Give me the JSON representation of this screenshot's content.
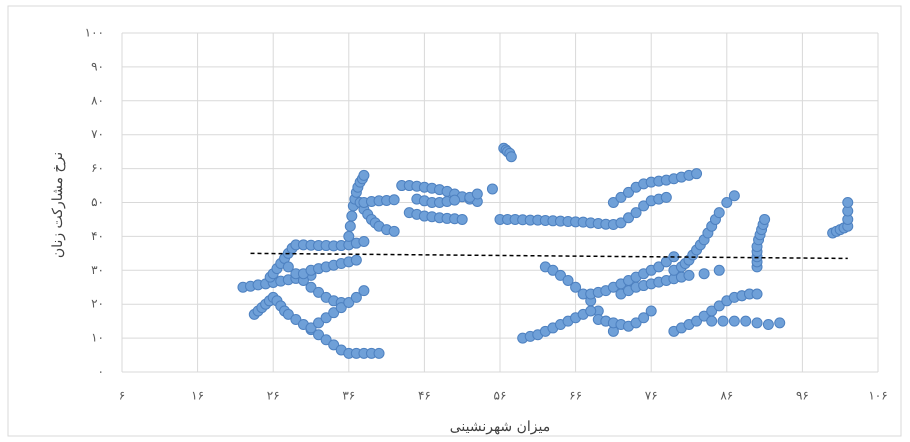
{
  "chart_data": {
    "type": "scatter",
    "x_label": "میزان شهرنشینی",
    "y_label": "نرخ مشارکت زنان",
    "color": "#6fa0d8",
    "edge_color": "#4e81c0",
    "grid": true,
    "xlim": [
      6,
      106
    ],
    "ylim": [
      0,
      100
    ],
    "xticks": [
      {
        "value": 6,
        "label": "۶"
      },
      {
        "value": 16,
        "label": "۱۶"
      },
      {
        "value": 26,
        "label": "۲۶"
      },
      {
        "value": 36,
        "label": "۳۶"
      },
      {
        "value": 46,
        "label": "۴۶"
      },
      {
        "value": 56,
        "label": "۵۶"
      },
      {
        "value": 66,
        "label": "۶۶"
      },
      {
        "value": 76,
        "label": "۷۶"
      },
      {
        "value": 86,
        "label": "۸۶"
      },
      {
        "value": 96,
        "label": "۹۶"
      },
      {
        "value": 106,
        "label": "۱۰۶"
      }
    ],
    "yticks": [
      {
        "value": 0,
        "label": "۰"
      },
      {
        "value": 10,
        "label": "۱۰"
      },
      {
        "value": 20,
        "label": "۲۰"
      },
      {
        "value": 30,
        "label": "۳۰"
      },
      {
        "value": 40,
        "label": "۴۰"
      },
      {
        "value": 50,
        "label": "۵۰"
      },
      {
        "value": 60,
        "label": "۶۰"
      },
      {
        "value": 70,
        "label": "۷۰"
      },
      {
        "value": 80,
        "label": "۸۰"
      },
      {
        "value": 90,
        "label": "۹۰"
      },
      {
        "value": 100,
        "label": "۱۰۰"
      }
    ],
    "x": [
      22,
      23,
      24,
      25,
      26,
      27,
      28,
      29,
      30,
      31,
      25.6,
      26,
      26.5,
      27,
      27.5,
      28,
      28.5,
      29,
      30,
      31,
      32,
      33,
      34,
      35,
      36,
      37,
      38,
      36,
      36.2,
      36.4,
      36.6,
      36.8,
      37,
      37.2,
      37.5,
      37.8,
      38,
      23.5,
      24,
      24.5,
      25,
      25.5,
      26,
      26.5,
      27,
      27.5,
      28,
      29,
      30,
      31,
      32,
      33,
      34,
      35,
      36,
      37,
      38,
      39,
      40,
      28,
      29,
      30,
      31,
      32,
      33,
      34,
      35,
      31,
      32,
      33,
      34,
      35,
      36,
      37,
      38,
      30,
      31,
      32,
      33,
      34,
      35,
      36,
      37,
      37.5,
      38,
      38.5,
      39,
      39.5,
      40,
      41,
      42,
      38,
      39,
      40,
      41,
      42,
      43,
      44,
      45,
      46,
      47,
      48,
      49,
      50,
      51,
      52,
      53,
      44,
      45,
      46,
      47,
      48,
      49,
      50,
      51,
      45,
      46,
      47,
      48,
      49,
      50,
      52,
      53,
      55,
      56.5,
      56.8,
      57,
      57.3,
      57.5,
      56,
      57,
      58,
      59,
      60,
      61,
      62,
      63,
      64,
      65,
      66,
      67,
      68,
      69,
      70,
      71,
      71,
      72,
      73,
      74,
      75,
      76,
      77,
      78,
      79,
      80,
      81,
      82,
      72,
      73,
      74,
      75,
      76,
      77,
      78,
      62,
      63,
      64,
      65,
      66,
      67,
      68,
      69,
      70,
      71,
      59,
      60,
      61,
      62,
      63,
      64,
      65,
      66,
      67,
      68,
      68,
      69,
      70,
      71,
      72,
      73,
      74,
      75,
      76,
      77,
      78,
      79,
      72,
      73,
      74,
      75,
      76,
      77,
      78,
      79,
      80,
      81,
      83,
      85,
      79,
      80,
      80.5,
      81,
      81.5,
      82,
      82.5,
      83,
      83.5,
      84,
      84.5,
      85,
      86,
      87,
      69,
      70,
      71,
      72,
      73,
      74,
      75,
      76,
      79,
      80,
      81,
      82,
      83,
      84,
      85,
      86,
      87,
      88,
      84,
      85.5,
      87,
      88.5,
      90,
      91.5,
      93,
      88,
      89,
      90,
      90,
      90,
      90,
      90,
      90,
      90.2,
      90.4,
      90.6,
      90.8,
      91,
      100,
      100.5,
      101,
      101.5,
      102,
      102,
      102,
      102
    ],
    "values": [
      25,
      25.3,
      25.7,
      26,
      26.4,
      26.8,
      27.2,
      27.6,
      28,
      28.5,
      28,
      29,
      30.5,
      32,
      33.5,
      35,
      36.5,
      37.5,
      37.5,
      37.4,
      37.3,
      37.3,
      37.2,
      37.3,
      37.5,
      38,
      38.5,
      40,
      43,
      46,
      49,
      51,
      53,
      54.5,
      56,
      57,
      58,
      17,
      18,
      19,
      20,
      21,
      22,
      21,
      19.5,
      18,
      17,
      15.5,
      14,
      12.5,
      11,
      9.5,
      8,
      6.5,
      5.5,
      5.5,
      5.5,
      5.5,
      5.5,
      31,
      29,
      27,
      25,
      23.5,
      22,
      21,
      20.5,
      13,
      14.5,
      16,
      17.5,
      19,
      20.5,
      22,
      24,
      29,
      30,
      30.5,
      31,
      31.5,
      32,
      32.5,
      33,
      50,
      48,
      46.5,
      45,
      44,
      43,
      42,
      41.5,
      50,
      50.3,
      50.5,
      50.6,
      50.8,
      55,
      55,
      54.8,
      54.5,
      54.2,
      53.8,
      53.3,
      52.5,
      51.7,
      51,
      50.3,
      47,
      46.5,
      46,
      45.8,
      45.5,
      45.3,
      45.2,
      45,
      51,
      50.5,
      50,
      50,
      50.3,
      50.7,
      51.5,
      52.5,
      54,
      66,
      65.5,
      65,
      64.5,
      63.5,
      45,
      45,
      45,
      44.9,
      44.8,
      44.8,
      44.7,
      44.6,
      44.5,
      44.4,
      44.3,
      44.2,
      44,
      43.8,
      43.6,
      43.5,
      50,
      51.5,
      53,
      54.5,
      55.5,
      56,
      56.3,
      56.6,
      57,
      57.5,
      58,
      58.5,
      44,
      45.5,
      47,
      49,
      50.5,
      51,
      51.5,
      31,
      30,
      28.5,
      27,
      25,
      23,
      21,
      18,
      15,
      12,
      10,
      10.5,
      11,
      12,
      13,
      14,
      15,
      16,
      17,
      18,
      23,
      23.5,
      24,
      25,
      26,
      27,
      28,
      29,
      30,
      31,
      32.5,
      34,
      23,
      24,
      25,
      25.5,
      26,
      26.5,
      27,
      27.5,
      28,
      28.5,
      29,
      30,
      30,
      31,
      32,
      33,
      34.5,
      36,
      37.5,
      39,
      41,
      43,
      45,
      47,
      50,
      52,
      15.5,
      15,
      14.5,
      14,
      13.5,
      14.5,
      16,
      18,
      12,
      13,
      14,
      15,
      16.5,
      18,
      19.5,
      21,
      22,
      22.5,
      15,
      15,
      15,
      15,
      14.5,
      14,
      14.5,
      22.5,
      23,
      23,
      31,
      32.5,
      34,
      35.5,
      37,
      39,
      40.5,
      42,
      43.5,
      45,
      41,
      41.5,
      42,
      42.5,
      43,
      45,
      47.5,
      50
    ],
    "trendline": {
      "x": [
        23,
        102
      ],
      "values": [
        35,
        33.5
      ],
      "color": "#000000"
    }
  }
}
